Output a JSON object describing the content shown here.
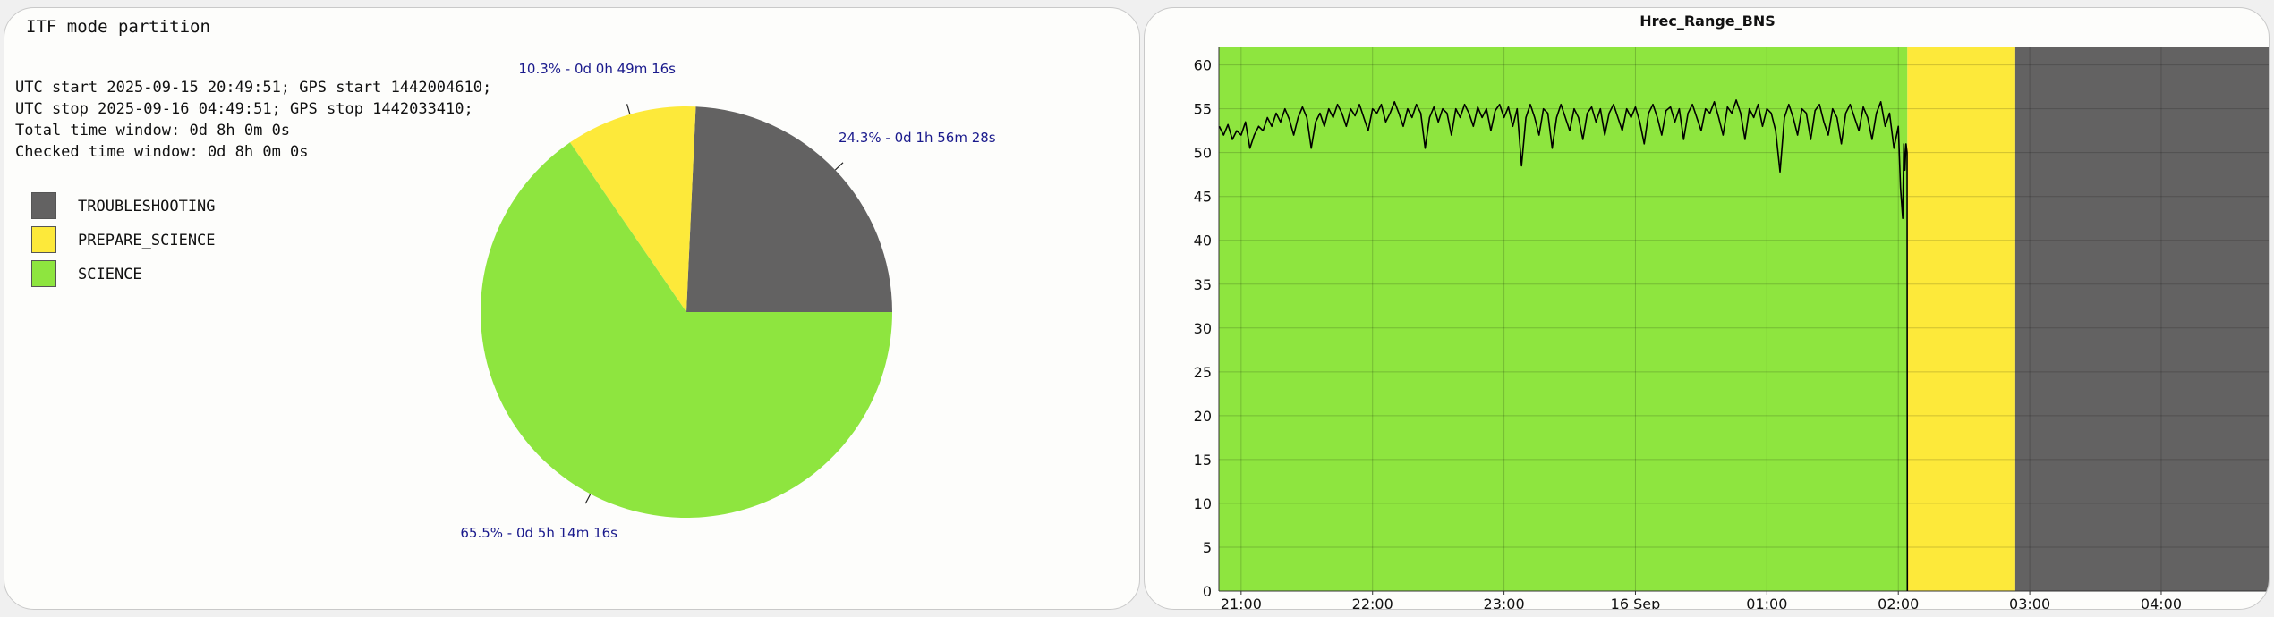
{
  "left_panel": {
    "title": "ITF mode partition",
    "info_lines": [
      "UTC start 2025-09-15 20:49:51; GPS start 1442004610;",
      "UTC stop 2025-09-16 04:49:51; GPS stop 1442033410;",
      "Total time window: 0d 8h 0m 0s",
      "Checked time window: 0d 8h 0m 0s"
    ]
  },
  "colors": {
    "troubleshooting": "#636262",
    "prepare_science": "#fde93a",
    "science": "#8ee53f",
    "line": "#000000",
    "label_text": "#1a1a8c"
  },
  "chart_data": [
    {
      "type": "pie",
      "title": "",
      "legend_placement": "left",
      "slices": [
        {
          "name": "TROUBLESHOOTING",
          "value": 24.3,
          "label": "24.3% - 0d 1h 56m 28s",
          "color": "#636262"
        },
        {
          "name": "PREPARE_SCIENCE",
          "value": 10.3,
          "label": "10.3% - 0d 0h 49m 16s",
          "color": "#fde93a"
        },
        {
          "name": "SCIENCE",
          "value": 65.5,
          "label": "65.5% - 0d 5h 14m 16s",
          "color": "#8ee53f"
        }
      ]
    },
    {
      "type": "line",
      "title": "Hrec_Range_BNS",
      "xlabel": "",
      "ylabel": "",
      "grid": true,
      "xlim": [
        "2025-09-15 20:49:51",
        "2025-09-16 04:49:51"
      ],
      "ylim": [
        0,
        62
      ],
      "y_ticks": [
        0,
        5,
        10,
        15,
        20,
        25,
        30,
        35,
        40,
        45,
        50,
        55,
        60
      ],
      "x_ticks": [
        {
          "time": "2025-09-15 21:00",
          "label": "21:00"
        },
        {
          "time": "2025-09-15 22:00",
          "label": "22:00"
        },
        {
          "time": "2025-09-15 23:00",
          "label": "23:00"
        },
        {
          "time": "2025-09-16 00:00",
          "label": "16 Sep"
        },
        {
          "time": "2025-09-16 01:00",
          "label": "01:00"
        },
        {
          "time": "2025-09-16 02:00",
          "label": "02:00"
        },
        {
          "time": "2025-09-16 03:00",
          "label": "03:00"
        },
        {
          "time": "2025-09-16 04:00",
          "label": "04:00"
        }
      ],
      "background_bands": [
        {
          "mode": "SCIENCE",
          "start": "2025-09-15 20:49:51",
          "end": "2025-09-16 02:04:07",
          "color": "#8ee53f"
        },
        {
          "mode": "PREPARE_SCIENCE",
          "start": "2025-09-16 02:04:07",
          "end": "2025-09-16 02:53:23",
          "color": "#fde93a"
        },
        {
          "mode": "TROUBLESHOOTING",
          "start": "2025-09-16 02:53:23",
          "end": "2025-09-16 04:49:51",
          "color": "#636262"
        }
      ],
      "series": [
        {
          "color": "#000000",
          "points": [
            [
              "2025-09-15 20:50",
              53.0
            ],
            [
              "2025-09-15 20:52",
              52.0
            ],
            [
              "2025-09-15 20:54",
              53.2
            ],
            [
              "2025-09-15 20:56",
              51.5
            ],
            [
              "2025-09-15 20:58",
              52.5
            ],
            [
              "2025-09-15 21:00",
              52.0
            ],
            [
              "2025-09-15 21:02",
              53.5
            ],
            [
              "2025-09-15 21:04",
              50.5
            ],
            [
              "2025-09-15 21:06",
              52.0
            ],
            [
              "2025-09-15 21:08",
              53.0
            ],
            [
              "2025-09-15 21:10",
              52.5
            ],
            [
              "2025-09-15 21:12",
              54.0
            ],
            [
              "2025-09-15 21:14",
              53.0
            ],
            [
              "2025-09-15 21:16",
              54.5
            ],
            [
              "2025-09-15 21:18",
              53.5
            ],
            [
              "2025-09-15 21:20",
              55.0
            ],
            [
              "2025-09-15 21:22",
              53.8
            ],
            [
              "2025-09-15 21:24",
              52.0
            ],
            [
              "2025-09-15 21:26",
              54.0
            ],
            [
              "2025-09-15 21:28",
              55.2
            ],
            [
              "2025-09-15 21:30",
              54.0
            ],
            [
              "2025-09-15 21:32",
              50.5
            ],
            [
              "2025-09-15 21:34",
              53.5
            ],
            [
              "2025-09-15 21:36",
              54.5
            ],
            [
              "2025-09-15 21:38",
              53.0
            ],
            [
              "2025-09-15 21:40",
              55.0
            ],
            [
              "2025-09-15 21:42",
              54.0
            ],
            [
              "2025-09-15 21:44",
              55.5
            ],
            [
              "2025-09-15 21:46",
              54.5
            ],
            [
              "2025-09-15 21:48",
              53.0
            ],
            [
              "2025-09-15 21:50",
              55.0
            ],
            [
              "2025-09-15 21:52",
              54.2
            ],
            [
              "2025-09-15 21:54",
              55.5
            ],
            [
              "2025-09-15 21:56",
              54.0
            ],
            [
              "2025-09-15 21:58",
              52.5
            ],
            [
              "2025-09-15 22:00",
              55.0
            ],
            [
              "2025-09-15 22:02",
              54.5
            ],
            [
              "2025-09-15 22:04",
              55.5
            ],
            [
              "2025-09-15 22:06",
              53.5
            ],
            [
              "2025-09-15 22:08",
              54.5
            ],
            [
              "2025-09-15 22:10",
              55.8
            ],
            [
              "2025-09-15 22:12",
              54.5
            ],
            [
              "2025-09-15 22:14",
              53.0
            ],
            [
              "2025-09-15 22:16",
              55.0
            ],
            [
              "2025-09-15 22:18",
              54.0
            ],
            [
              "2025-09-15 22:20",
              55.5
            ],
            [
              "2025-09-15 22:22",
              54.5
            ],
            [
              "2025-09-15 22:24",
              50.5
            ],
            [
              "2025-09-15 22:26",
              54.0
            ],
            [
              "2025-09-15 22:28",
              55.2
            ],
            [
              "2025-09-15 22:30",
              53.5
            ],
            [
              "2025-09-15 22:32",
              55.0
            ],
            [
              "2025-09-15 22:34",
              54.5
            ],
            [
              "2025-09-15 22:36",
              52.0
            ],
            [
              "2025-09-15 22:38",
              55.0
            ],
            [
              "2025-09-15 22:40",
              54.0
            ],
            [
              "2025-09-15 22:42",
              55.5
            ],
            [
              "2025-09-15 22:44",
              54.5
            ],
            [
              "2025-09-15 22:46",
              53.0
            ],
            [
              "2025-09-15 22:48",
              55.2
            ],
            [
              "2025-09-15 22:50",
              54.0
            ],
            [
              "2025-09-15 22:52",
              55.0
            ],
            [
              "2025-09-15 22:54",
              52.5
            ],
            [
              "2025-09-15 22:56",
              54.8
            ],
            [
              "2025-09-15 22:58",
              55.5
            ],
            [
              "2025-09-15 23:00",
              54.0
            ],
            [
              "2025-09-15 23:02",
              55.2
            ],
            [
              "2025-09-15 23:04",
              53.0
            ],
            [
              "2025-09-15 23:06",
              55.0
            ],
            [
              "2025-09-15 23:08",
              48.5
            ],
            [
              "2025-09-15 23:10",
              54.0
            ],
            [
              "2025-09-15 23:12",
              55.5
            ],
            [
              "2025-09-15 23:14",
              54.0
            ],
            [
              "2025-09-15 23:16",
              52.0
            ],
            [
              "2025-09-15 23:18",
              55.0
            ],
            [
              "2025-09-15 23:20",
              54.5
            ],
            [
              "2025-09-15 23:22",
              50.5
            ],
            [
              "2025-09-15 23:24",
              54.0
            ],
            [
              "2025-09-15 23:26",
              55.5
            ],
            [
              "2025-09-15 23:28",
              54.0
            ],
            [
              "2025-09-15 23:30",
              52.5
            ],
            [
              "2025-09-15 23:32",
              55.0
            ],
            [
              "2025-09-15 23:34",
              54.0
            ],
            [
              "2025-09-15 23:36",
              51.5
            ],
            [
              "2025-09-15 23:38",
              54.5
            ],
            [
              "2025-09-15 23:40",
              55.2
            ],
            [
              "2025-09-15 23:42",
              53.5
            ],
            [
              "2025-09-15 23:44",
              55.0
            ],
            [
              "2025-09-15 23:46",
              52.0
            ],
            [
              "2025-09-15 23:48",
              54.5
            ],
            [
              "2025-09-15 23:50",
              55.5
            ],
            [
              "2025-09-15 23:52",
              54.0
            ],
            [
              "2025-09-15 23:54",
              52.5
            ],
            [
              "2025-09-15 23:56",
              55.0
            ],
            [
              "2025-09-15 23:58",
              54.0
            ],
            [
              "2025-09-16 00:00",
              55.2
            ],
            [
              "2025-09-16 00:02",
              53.5
            ],
            [
              "2025-09-16 00:04",
              51.0
            ],
            [
              "2025-09-16 00:06",
              54.5
            ],
            [
              "2025-09-16 00:08",
              55.5
            ],
            [
              "2025-09-16 00:10",
              54.0
            ],
            [
              "2025-09-16 00:12",
              52.0
            ],
            [
              "2025-09-16 00:14",
              54.8
            ],
            [
              "2025-09-16 00:16",
              55.2
            ],
            [
              "2025-09-16 00:18",
              53.5
            ],
            [
              "2025-09-16 00:20",
              55.0
            ],
            [
              "2025-09-16 00:22",
              51.5
            ],
            [
              "2025-09-16 00:24",
              54.5
            ],
            [
              "2025-09-16 00:26",
              55.5
            ],
            [
              "2025-09-16 00:28",
              54.0
            ],
            [
              "2025-09-16 00:30",
              52.5
            ],
            [
              "2025-09-16 00:32",
              55.0
            ],
            [
              "2025-09-16 00:34",
              54.5
            ],
            [
              "2025-09-16 00:36",
              55.8
            ],
            [
              "2025-09-16 00:38",
              54.0
            ],
            [
              "2025-09-16 00:40",
              52.0
            ],
            [
              "2025-09-16 00:42",
              55.2
            ],
            [
              "2025-09-16 00:44",
              54.5
            ],
            [
              "2025-09-16 00:46",
              56.0
            ],
            [
              "2025-09-16 00:48",
              54.5
            ],
            [
              "2025-09-16 00:50",
              51.5
            ],
            [
              "2025-09-16 00:52",
              55.0
            ],
            [
              "2025-09-16 00:54",
              54.0
            ],
            [
              "2025-09-16 00:56",
              55.5
            ],
            [
              "2025-09-16 00:58",
              53.0
            ],
            [
              "2025-09-16 01:00",
              55.0
            ],
            [
              "2025-09-16 01:02",
              54.5
            ],
            [
              "2025-09-16 01:04",
              52.5
            ],
            [
              "2025-09-16 01:06",
              47.8
            ],
            [
              "2025-09-16 01:08",
              54.0
            ],
            [
              "2025-09-16 01:10",
              55.5
            ],
            [
              "2025-09-16 01:12",
              54.0
            ],
            [
              "2025-09-16 01:14",
              52.0
            ],
            [
              "2025-09-16 01:16",
              55.0
            ],
            [
              "2025-09-16 01:18",
              54.5
            ],
            [
              "2025-09-16 01:20",
              51.5
            ],
            [
              "2025-09-16 01:22",
              54.8
            ],
            [
              "2025-09-16 01:24",
              55.5
            ],
            [
              "2025-09-16 01:26",
              53.5
            ],
            [
              "2025-09-16 01:28",
              52.0
            ],
            [
              "2025-09-16 01:30",
              55.0
            ],
            [
              "2025-09-16 01:32",
              54.0
            ],
            [
              "2025-09-16 01:34",
              51.0
            ],
            [
              "2025-09-16 01:36",
              54.5
            ],
            [
              "2025-09-16 01:38",
              55.5
            ],
            [
              "2025-09-16 01:40",
              54.0
            ],
            [
              "2025-09-16 01:42",
              52.5
            ],
            [
              "2025-09-16 01:44",
              55.2
            ],
            [
              "2025-09-16 01:46",
              54.0
            ],
            [
              "2025-09-16 01:48",
              51.5
            ],
            [
              "2025-09-16 01:50",
              54.5
            ],
            [
              "2025-09-16 01:52",
              55.8
            ],
            [
              "2025-09-16 01:54",
              53.0
            ],
            [
              "2025-09-16 01:56",
              54.5
            ],
            [
              "2025-09-16 01:58",
              50.5
            ],
            [
              "2025-09-16 02:00",
              53.0
            ],
            [
              "2025-09-16 02:01",
              46.0
            ],
            [
              "2025-09-16 02:02",
              42.5
            ],
            [
              "2025-09-16 02:02:30",
              51.0
            ],
            [
              "2025-09-16 02:03",
              48.0
            ],
            [
              "2025-09-16 02:03:30",
              51.0
            ],
            [
              "2025-09-16 02:04",
              50.0
            ],
            [
              "2025-09-16 02:04:07",
              0.0
            ]
          ]
        }
      ]
    }
  ]
}
